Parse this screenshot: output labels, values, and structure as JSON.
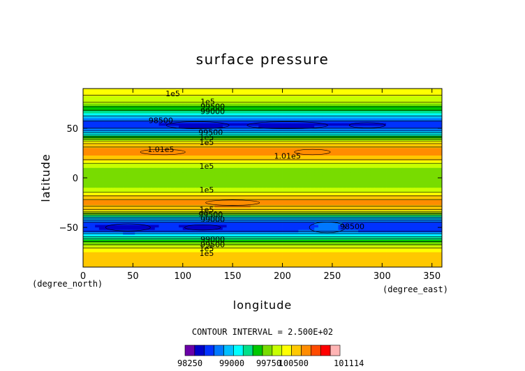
{
  "chart_data": {
    "type": "heatmap",
    "subtype": "filled-contour",
    "title": "surface pressure",
    "xlabel": "longitude",
    "ylabel": "latitude",
    "x_unit": "(degree_east)",
    "y_unit": "(degree_north)",
    "xlim": [
      0,
      360
    ],
    "ylim": [
      -90,
      90
    ],
    "x_ticks": [
      0,
      50,
      100,
      150,
      200,
      250,
      300,
      350
    ],
    "y_ticks": [
      -50,
      0,
      50
    ],
    "contour_interval_text": "CONTOUR INTERVAL = 2.500E+02",
    "colorbar": {
      "min": 98250,
      "max": 101114,
      "step": 250,
      "tick_labels": [
        "98250",
        "99000",
        "99750",
        "100500",
        "101114"
      ],
      "colors": [
        "#6a00a8",
        "#0000c8",
        "#0032ff",
        "#0078ff",
        "#00bfff",
        "#00ffff",
        "#00e08a",
        "#00c800",
        "#78dc00",
        "#c8ff00",
        "#ffff00",
        "#ffc800",
        "#ff8c00",
        "#ff4b00",
        "#ff0000",
        "#ffb4b4"
      ]
    },
    "zonal_profile": {
      "lat": [
        90,
        85,
        80,
        75,
        70,
        65,
        60,
        55,
        52,
        48,
        45,
        42,
        40,
        37,
        35,
        33,
        30,
        27,
        25,
        22,
        20,
        15,
        10,
        5,
        0,
        -5,
        -10,
        -15,
        -20,
        -23,
        -25,
        -28,
        -30,
        -33,
        -35,
        -37,
        -40,
        -42,
        -45,
        -48,
        -52,
        -55,
        -58,
        -60,
        -65,
        -70,
        -75,
        -80,
        -85,
        -90
      ],
      "pressure": [
        100650,
        100550,
        100400,
        100200,
        99900,
        99500,
        99000,
        98550,
        98600,
        98900,
        99300,
        99700,
        100100,
        100450,
        100700,
        100900,
        101050,
        101120,
        101110,
        101000,
        100870,
        100520,
        100250,
        100200,
        100200,
        100200,
        100250,
        100520,
        100880,
        101070,
        101100,
        101050,
        100900,
        100650,
        100300,
        99900,
        99450,
        99050,
        98700,
        98530,
        98560,
        98850,
        99250,
        99600,
        100050,
        100450,
        100750,
        100880,
        100920,
        100950
      ]
    },
    "anomalies": [
      {
        "lon": 115,
        "lat": 53,
        "dlon": 35,
        "dlat": 4,
        "dp": -250
      },
      {
        "lon": 205,
        "lat": 53,
        "dlon": 45,
        "dlat": 4,
        "dp": -280
      },
      {
        "lon": 285,
        "lat": 53,
        "dlon": 20,
        "dlat": 3,
        "dp": -180
      },
      {
        "lon": 45,
        "lat": -50,
        "dlon": 25,
        "dlat": 4,
        "dp": -200
      },
      {
        "lon": 120,
        "lat": -50,
        "dlon": 20,
        "dlat": 3,
        "dp": -150
      },
      {
        "lon": 245,
        "lat": -50,
        "dlon": 20,
        "dlat": 6,
        "dp": 300
      },
      {
        "lon": 80,
        "lat": 26,
        "dlon": 25,
        "dlat": 3,
        "dp": 40
      },
      {
        "lon": 230,
        "lat": 26,
        "dlon": 20,
        "dlat": 3,
        "dp": 40
      },
      {
        "lon": 150,
        "lat": -25,
        "dlon": 30,
        "dlat": 3,
        "dp": 40
      }
    ],
    "contour_labels": [
      {
        "text": "1e5",
        "lon": 90,
        "lat": 85
      },
      {
        "text": "1e5",
        "lon": 125,
        "lat": 77
      },
      {
        "text": "99500",
        "lon": 130,
        "lat": 72
      },
      {
        "text": "99000",
        "lon": 130,
        "lat": 67
      },
      {
        "text": "98500",
        "lon": 78,
        "lat": 58
      },
      {
        "text": "99500",
        "lon": 128,
        "lat": 46
      },
      {
        "text": "1e5",
        "lon": 124,
        "lat": 41
      },
      {
        "text": "1e5",
        "lon": 124,
        "lat": 36
      },
      {
        "text": "1.01e5",
        "lon": 78,
        "lat": 29
      },
      {
        "text": "1.01e5",
        "lon": 205,
        "lat": 22
      },
      {
        "text": "1e5",
        "lon": 124,
        "lat": 12
      },
      {
        "text": "1e5",
        "lon": 124,
        "lat": -12
      },
      {
        "text": "1e5",
        "lon": 124,
        "lat": -32
      },
      {
        "text": "99500",
        "lon": 128,
        "lat": -37
      },
      {
        "text": "99000",
        "lon": 130,
        "lat": -42
      },
      {
        "text": "98500",
        "lon": 270,
        "lat": -49
      },
      {
        "text": "99000",
        "lon": 130,
        "lat": -62
      },
      {
        "text": "99500",
        "lon": 130,
        "lat": -67
      },
      {
        "text": "1e5",
        "lon": 124,
        "lat": -71
      },
      {
        "text": "1e5",
        "lon": 124,
        "lat": -76
      }
    ]
  }
}
